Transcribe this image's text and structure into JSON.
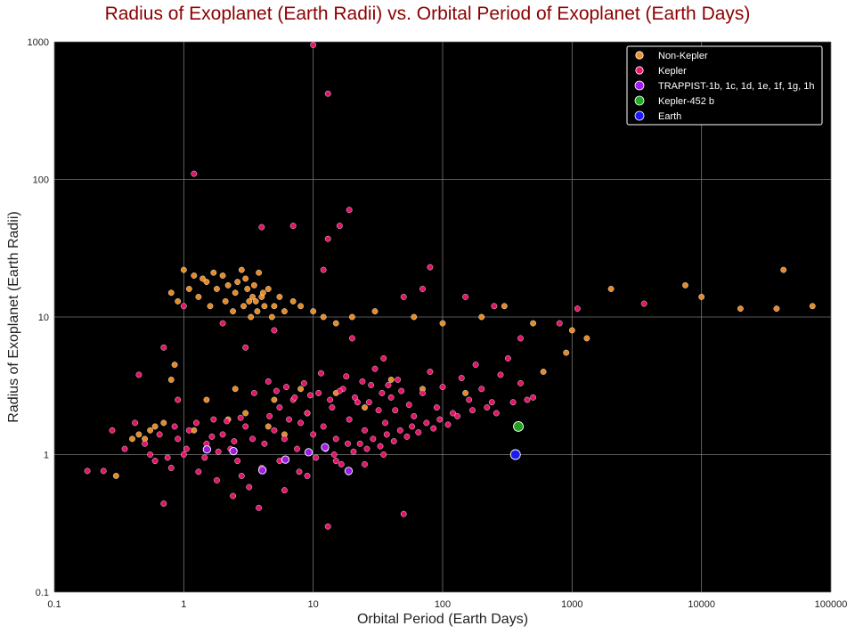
{
  "chart_data": {
    "type": "scatter",
    "title": "Radius of Exoplanet (Earth Radii) vs. Orbital Period of Exoplanet (Earth Days)",
    "xlabel": "Orbital Period (Earth Days)",
    "ylabel": "Radius of Exoplanet (Earth Radii)",
    "x_scale": "log",
    "y_scale": "log",
    "xlim": [
      0.1,
      100000
    ],
    "ylim": [
      0.1,
      1000
    ],
    "x_ticks": [
      "0.1",
      "1",
      "10",
      "100",
      "1000",
      "10000",
      "100000"
    ],
    "y_ticks": [
      "0.1",
      "1",
      "10",
      "100",
      "1000"
    ],
    "grid": true,
    "background": "#000000",
    "legend_position": "top-right",
    "legend_entries": [
      "Non-Kepler",
      "Kepler",
      "TRAPPIST-1b, 1c, 1d, 1e, 1f, 1g, 1h",
      "Kepler-452 b",
      "Earth"
    ],
    "series": [
      {
        "name": "Non-Kepler",
        "color": "#f0922a",
        "points": [
          [
            1.0,
            22
          ],
          [
            1.2,
            20
          ],
          [
            1.5,
            18
          ],
          [
            1.8,
            16
          ],
          [
            2.0,
            20
          ],
          [
            2.2,
            17
          ],
          [
            2.5,
            15
          ],
          [
            2.8,
            22
          ],
          [
            3.0,
            19
          ],
          [
            3.2,
            13
          ],
          [
            3.5,
            17
          ],
          [
            3.8,
            21
          ],
          [
            4.0,
            14
          ],
          [
            4.5,
            16
          ],
          [
            5.0,
            12
          ],
          [
            5.5,
            14
          ],
          [
            6.0,
            11
          ],
          [
            7.0,
            13
          ],
          [
            8.0,
            12
          ],
          [
            1.3,
            14
          ],
          [
            1.6,
            12
          ],
          [
            2.1,
            13
          ],
          [
            2.4,
            11
          ],
          [
            2.9,
            12
          ],
          [
            3.3,
            10
          ],
          [
            3.7,
            11
          ],
          [
            4.2,
            12
          ],
          [
            4.8,
            10
          ],
          [
            0.8,
            15
          ],
          [
            0.9,
            13
          ],
          [
            1.1,
            16
          ],
          [
            1.4,
            19
          ],
          [
            1.7,
            21
          ],
          [
            2.6,
            18
          ],
          [
            3.1,
            16
          ],
          [
            3.4,
            14
          ],
          [
            3.6,
            13
          ],
          [
            4.1,
            15
          ],
          [
            10,
            11
          ],
          [
            12,
            10
          ],
          [
            15,
            9
          ],
          [
            20,
            10
          ],
          [
            30,
            11
          ],
          [
            60,
            10
          ],
          [
            100,
            9
          ],
          [
            200,
            10
          ],
          [
            300,
            12
          ],
          [
            500,
            9
          ],
          [
            1000,
            8
          ],
          [
            2000,
            16
          ],
          [
            7500,
            17
          ],
          [
            10000,
            14
          ],
          [
            20000,
            11.5
          ],
          [
            38000,
            11.5
          ],
          [
            43000,
            22
          ],
          [
            72000,
            12
          ],
          [
            1300,
            7
          ],
          [
            900,
            5.5
          ],
          [
            600,
            4
          ],
          [
            0.45,
            1.4
          ],
          [
            0.5,
            1.3
          ],
          [
            0.55,
            1.5
          ],
          [
            0.6,
            1.6
          ],
          [
            0.7,
            1.7
          ],
          [
            0.8,
            3.5
          ],
          [
            0.85,
            4.5
          ],
          [
            1.5,
            2.5
          ],
          [
            2.5,
            3
          ],
          [
            3,
            2
          ],
          [
            5,
            2.5
          ],
          [
            8,
            3
          ],
          [
            15,
            2.8
          ],
          [
            25,
            2.2
          ],
          [
            40,
            3.5
          ],
          [
            70,
            3
          ],
          [
            150,
            2.8
          ],
          [
            0.3,
            0.7
          ],
          [
            0.4,
            1.3
          ],
          [
            1.2,
            1.5
          ],
          [
            2.2,
            1.8
          ],
          [
            4.5,
            1.6
          ],
          [
            6,
            1.4
          ],
          [
            9,
            2
          ]
        ]
      },
      {
        "name": "Kepler",
        "color": "#f0156e",
        "points": [
          [
            0.18,
            0.76
          ],
          [
            0.24,
            0.76
          ],
          [
            0.28,
            1.5
          ],
          [
            0.35,
            1.1
          ],
          [
            0.42,
            1.7
          ],
          [
            0.5,
            1.2
          ],
          [
            0.6,
            0.9
          ],
          [
            0.7,
            0.44
          ],
          [
            0.8,
            0.8
          ],
          [
            0.9,
            1.3
          ],
          [
            1.0,
            1.0
          ],
          [
            1.1,
            1.5
          ],
          [
            1.3,
            0.75
          ],
          [
            1.5,
            1.2
          ],
          [
            1.7,
            1.8
          ],
          [
            2.0,
            1.4
          ],
          [
            2.3,
            1.1
          ],
          [
            2.6,
            0.9
          ],
          [
            3.0,
            1.6
          ],
          [
            3.4,
            1.3
          ],
          [
            3.8,
            0.41
          ],
          [
            4.2,
            1.2
          ],
          [
            4.6,
            1.9
          ],
          [
            5.0,
            1.5
          ],
          [
            5.5,
            2.2
          ],
          [
            6.0,
            1.3
          ],
          [
            6.5,
            1.8
          ],
          [
            7.0,
            2.5
          ],
          [
            7.5,
            1.1
          ],
          [
            8.0,
            1.7
          ],
          [
            9.0,
            2.0
          ],
          [
            10,
            1.4
          ],
          [
            11,
            2.8
          ],
          [
            12,
            1.6
          ],
          [
            13,
            0.3
          ],
          [
            14,
            2.2
          ],
          [
            15,
            1.3
          ],
          [
            17,
            3.0
          ],
          [
            19,
            1.8
          ],
          [
            22,
            2.4
          ],
          [
            25,
            1.5
          ],
          [
            28,
            3.2
          ],
          [
            32,
            2.1
          ],
          [
            36,
            1.7
          ],
          [
            40,
            2.6
          ],
          [
            45,
            3.5
          ],
          [
            50,
            0.37
          ],
          [
            55,
            2.3
          ],
          [
            60,
            1.9
          ],
          [
            70,
            2.8
          ],
          [
            80,
            4.0
          ],
          [
            90,
            2.2
          ],
          [
            100,
            3.1
          ],
          [
            120,
            2.0
          ],
          [
            140,
            3.6
          ],
          [
            160,
            2.5
          ],
          [
            180,
            4.5
          ],
          [
            200,
            3.0
          ],
          [
            240,
            2.4
          ],
          [
            280,
            3.8
          ],
          [
            320,
            5.0
          ],
          [
            400,
            3.3
          ],
          [
            500,
            2.6
          ],
          [
            3.5,
            2.8
          ],
          [
            4.5,
            3.4
          ],
          [
            5.2,
            2.9
          ],
          [
            6.2,
            3.1
          ],
          [
            7.2,
            2.6
          ],
          [
            8.5,
            3.3
          ],
          [
            9.5,
            2.7
          ],
          [
            11.5,
            3.9
          ],
          [
            13.5,
            2.5
          ],
          [
            16,
            2.9
          ],
          [
            18,
            3.7
          ],
          [
            21,
            2.6
          ],
          [
            24,
            3.4
          ],
          [
            27,
            2.4
          ],
          [
            30,
            4.2
          ],
          [
            34,
            2.8
          ],
          [
            38,
            3.2
          ],
          [
            43,
            2.1
          ],
          [
            48,
            2.9
          ],
          [
            1.2,
            110
          ],
          [
            10,
            950
          ],
          [
            13,
            420
          ],
          [
            4,
            45
          ],
          [
            7,
            46
          ],
          [
            19,
            60
          ],
          [
            13,
            37
          ],
          [
            16,
            46
          ],
          [
            12,
            22
          ],
          [
            80,
            23
          ],
          [
            50,
            14
          ],
          [
            70,
            16
          ],
          [
            150,
            14
          ],
          [
            250,
            12
          ],
          [
            3600,
            12.5
          ],
          [
            1100,
            11.5
          ],
          [
            1.0,
            12
          ],
          [
            2.0,
            9
          ],
          [
            3.0,
            6
          ],
          [
            5.0,
            8
          ],
          [
            20,
            7
          ],
          [
            35,
            5
          ],
          [
            400,
            7
          ],
          [
            800,
            9
          ],
          [
            0.7,
            6
          ],
          [
            0.45,
            3.8
          ],
          [
            0.9,
            2.5
          ],
          [
            2.8,
            0.7
          ],
          [
            4,
            0.8
          ],
          [
            6,
            0.55
          ],
          [
            9,
            0.7
          ],
          [
            15,
            0.9
          ],
          [
            25,
            0.85
          ],
          [
            35,
            1.0
          ],
          [
            1.8,
            0.65
          ],
          [
            2.4,
            0.5
          ],
          [
            3.2,
            0.58
          ],
          [
            5.5,
            0.9
          ],
          [
            7.8,
            0.75
          ],
          [
            10.5,
            0.95
          ],
          [
            12.5,
            1.1
          ],
          [
            14.5,
            1.0
          ],
          [
            16.5,
            0.85
          ],
          [
            18.5,
            1.2
          ],
          [
            20.5,
            1.05
          ],
          [
            23,
            1.2
          ],
          [
            26,
            1.1
          ],
          [
            29,
            1.3
          ],
          [
            33,
            1.15
          ],
          [
            37,
            1.4
          ],
          [
            42,
            1.25
          ],
          [
            47,
            1.5
          ],
          [
            53,
            1.35
          ],
          [
            58,
            1.6
          ],
          [
            65,
            1.45
          ],
          [
            75,
            1.7
          ],
          [
            85,
            1.55
          ],
          [
            95,
            1.8
          ],
          [
            110,
            1.65
          ],
          [
            130,
            1.9
          ],
          [
            170,
            2.1
          ],
          [
            220,
            2.2
          ],
          [
            260,
            2.0
          ],
          [
            350,
            2.4
          ],
          [
            450,
            2.5
          ],
          [
            0.55,
            1.0
          ],
          [
            0.65,
            1.4
          ],
          [
            0.75,
            0.95
          ],
          [
            0.85,
            1.6
          ],
          [
            1.05,
            1.1
          ],
          [
            1.25,
            1.7
          ],
          [
            1.45,
            0.95
          ],
          [
            1.65,
            1.35
          ],
          [
            1.85,
            1.05
          ],
          [
            2.15,
            1.75
          ],
          [
            2.45,
            1.25
          ],
          [
            2.75,
            1.85
          ]
        ]
      },
      {
        "name": "TRAPPIST-1b, 1c, 1d, 1e, 1f, 1g, 1h",
        "color": "#a020f0",
        "points": [
          [
            1.51,
            1.09
          ],
          [
            2.42,
            1.06
          ],
          [
            4.05,
            0.77
          ],
          [
            6.1,
            0.92
          ],
          [
            9.21,
            1.04
          ],
          [
            12.35,
            1.13
          ],
          [
            18.77,
            0.76
          ]
        ]
      },
      {
        "name": "Kepler-452 b",
        "color": "#22aa22",
        "points": [
          [
            384.8,
            1.6
          ]
        ]
      },
      {
        "name": "Earth",
        "color": "#1a1aff",
        "points": [
          [
            365.25,
            1.0
          ]
        ]
      }
    ]
  }
}
